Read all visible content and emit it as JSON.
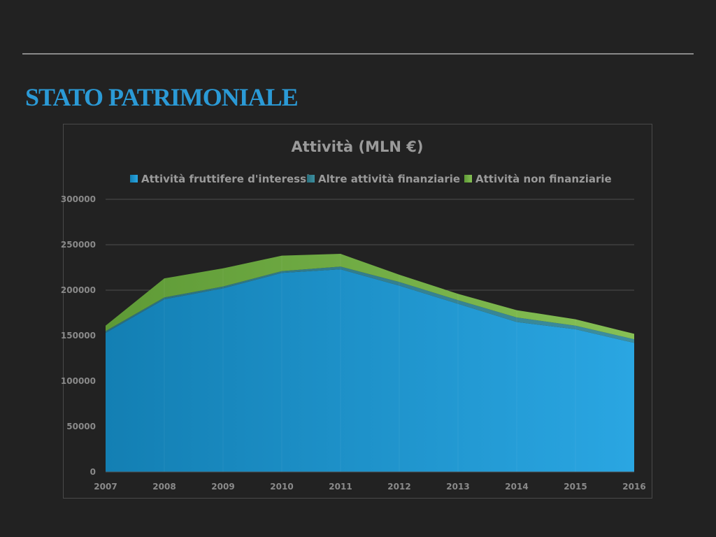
{
  "slide": {
    "title": "STATO PATRIMONIALE"
  },
  "chart_data": {
    "type": "area",
    "stacked": true,
    "title": "Attività (MLN €)",
    "x": [
      "2007",
      "2008",
      "2009",
      "2010",
      "2011",
      "2012",
      "2013",
      "2014",
      "2015",
      "2016"
    ],
    "ylim": [
      0,
      300000
    ],
    "yticks": [
      0,
      50000,
      100000,
      150000,
      200000,
      250000,
      300000
    ],
    "grid": true,
    "legend_position": "top",
    "series": [
      {
        "name": "Attività fruttifere d'interessi",
        "color": "#1f9cd8",
        "values": [
          153000,
          190000,
          202000,
          219000,
          223000,
          205000,
          185000,
          165000,
          157000,
          142000
        ]
      },
      {
        "name": "Altre attività finanziarie",
        "color": "#2f7f8f",
        "values": [
          2000,
          2000,
          2000,
          2000,
          3000,
          4000,
          4000,
          5000,
          4000,
          4000
        ]
      },
      {
        "name": "Attività non finanziarie",
        "color": "#7ab648",
        "values": [
          6000,
          21000,
          20000,
          17000,
          14000,
          8000,
          7000,
          8000,
          7000,
          6000
        ]
      }
    ]
  }
}
